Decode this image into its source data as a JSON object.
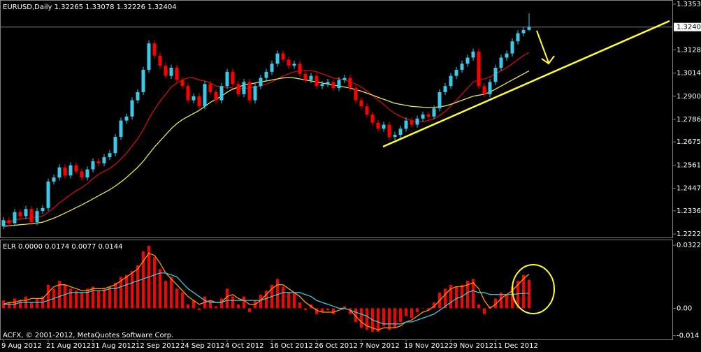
{
  "chart_data": [
    {
      "type": "candlestick",
      "title": "EURUSD,Daily  1.32265 1.33078 1.32226 1.32404",
      "categories": [
        "9 Aug 2012",
        null,
        null,
        null,
        null,
        null,
        null,
        null,
        "21 Aug 2012",
        null,
        null,
        null,
        null,
        null,
        null,
        null,
        "31 Aug 2012",
        null,
        null,
        null,
        null,
        null,
        null,
        null,
        "12 Sep 2012",
        null,
        null,
        null,
        null,
        null,
        null,
        null,
        "24 Sep 2012",
        null,
        null,
        null,
        null,
        null,
        null,
        null,
        "4 Oct 2012",
        null,
        null,
        null,
        null,
        null,
        null,
        null,
        "16 Oct 2012",
        null,
        null,
        null,
        null,
        null,
        null,
        null,
        "26 Oct 2012",
        null,
        null,
        null,
        null,
        null,
        null,
        null,
        "7 Nov 2012",
        null,
        null,
        null,
        null,
        null,
        null,
        null,
        "19 Nov 2012",
        null,
        null,
        null,
        null,
        null,
        null,
        null,
        "29 Nov 2012",
        null,
        null,
        null,
        null,
        null,
        null,
        null,
        "11 Dec 2012",
        null,
        null,
        null,
        null,
        null,
        null
      ],
      "open": [
        1.226,
        1.229,
        1.2275,
        1.233,
        1.231,
        1.2345,
        1.228,
        1.2335,
        1.235,
        1.248,
        1.25,
        1.255,
        1.251,
        1.256,
        1.253,
        1.25,
        1.254,
        1.258,
        1.257,
        1.26,
        1.262,
        1.27,
        1.278,
        1.28,
        1.288,
        1.292,
        1.303,
        1.316,
        1.31,
        1.305,
        1.3,
        1.304,
        1.298,
        1.295,
        1.288,
        1.29,
        1.285,
        1.296,
        1.292,
        1.288,
        1.295,
        1.302,
        1.296,
        1.291,
        1.297,
        1.288,
        1.295,
        1.299,
        1.302,
        1.306,
        1.311,
        1.308,
        1.305,
        1.306,
        1.301,
        1.298,
        1.3,
        1.295,
        1.296,
        1.297,
        1.294,
        1.298,
        1.299,
        1.294,
        1.288,
        1.285,
        1.281,
        1.277,
        1.274,
        1.276,
        1.27,
        1.271,
        1.274,
        1.278,
        1.276,
        1.279,
        1.281,
        1.28,
        1.284,
        1.292,
        1.295,
        1.3,
        1.303,
        1.306,
        1.309,
        1.312,
        1.295,
        1.291,
        1.297,
        1.304,
        1.309,
        1.311,
        1.317,
        1.321,
        1.32265
      ],
      "high": [
        1.2305,
        1.2305,
        1.2345,
        1.2345,
        1.236,
        1.236,
        1.235,
        1.2365,
        1.2495,
        1.2515,
        1.2565,
        1.2565,
        1.2575,
        1.2575,
        1.2545,
        1.2555,
        1.2595,
        1.2595,
        1.2615,
        1.2635,
        1.2715,
        1.2795,
        1.2815,
        1.2895,
        1.2935,
        1.3045,
        1.3175,
        1.3175,
        1.3115,
        1.3065,
        1.3055,
        1.3055,
        1.2995,
        1.2965,
        1.2915,
        1.2915,
        1.2975,
        1.2975,
        1.2935,
        1.2965,
        1.3035,
        1.3035,
        1.2975,
        1.2985,
        1.2985,
        1.2965,
        1.3005,
        1.3035,
        1.3075,
        1.3125,
        1.3125,
        1.3095,
        1.3075,
        1.3075,
        1.3025,
        1.3015,
        1.3015,
        1.2975,
        1.2985,
        1.2985,
        1.2995,
        1.3005,
        1.3005,
        1.2955,
        1.2895,
        1.2865,
        1.2825,
        1.2785,
        1.2775,
        1.2775,
        1.2725,
        1.2755,
        1.2795,
        1.2795,
        1.2805,
        1.2825,
        1.2825,
        1.2855,
        1.2935,
        1.2965,
        1.3015,
        1.3045,
        1.3075,
        1.3105,
        1.3135,
        1.3135,
        1.2965,
        1.2985,
        1.3055,
        1.3105,
        1.3125,
        1.3185,
        1.3225,
        1.3241,
        1.33078
      ],
      "low": [
        1.2245,
        1.226,
        1.226,
        1.2295,
        1.2295,
        1.2265,
        1.2265,
        1.232,
        1.2335,
        1.2465,
        1.2485,
        1.2495,
        1.2495,
        1.2515,
        1.2485,
        1.2485,
        1.2525,
        1.2555,
        1.2555,
        1.2585,
        1.2605,
        1.2685,
        1.2765,
        1.2785,
        1.2865,
        1.2905,
        1.3015,
        1.3085,
        1.3035,
        1.2985,
        1.2985,
        1.2965,
        1.2935,
        1.2865,
        1.2865,
        1.2835,
        1.2835,
        1.2905,
        1.2865,
        1.2865,
        1.2935,
        1.2945,
        1.2895,
        1.2895,
        1.2865,
        1.2865,
        1.2935,
        1.2975,
        1.3005,
        1.3045,
        1.3065,
        1.3035,
        1.3035,
        1.2995,
        1.2965,
        1.2965,
        1.2935,
        1.2935,
        1.2945,
        1.2925,
        1.2925,
        1.2965,
        1.2925,
        1.2865,
        1.2835,
        1.2795,
        1.2755,
        1.2725,
        1.2725,
        1.2685,
        1.2685,
        1.2695,
        1.2725,
        1.2745,
        1.2745,
        1.2775,
        1.2785,
        1.2785,
        1.2825,
        1.2905,
        1.2935,
        1.2985,
        1.3015,
        1.3045,
        1.3075,
        1.2935,
        1.2895,
        1.2895,
        1.2955,
        1.3025,
        1.3075,
        1.3095,
        1.3155,
        1.3195,
        1.32226
      ],
      "close": [
        1.229,
        1.2275,
        1.233,
        1.231,
        1.2345,
        1.228,
        1.2335,
        1.235,
        1.248,
        1.25,
        1.255,
        1.251,
        1.256,
        1.253,
        1.25,
        1.254,
        1.258,
        1.257,
        1.26,
        1.262,
        1.27,
        1.278,
        1.28,
        1.288,
        1.292,
        1.303,
        1.316,
        1.31,
        1.305,
        1.3,
        1.304,
        1.298,
        1.295,
        1.288,
        1.29,
        1.285,
        1.296,
        1.292,
        1.288,
        1.295,
        1.302,
        1.296,
        1.291,
        1.297,
        1.288,
        1.295,
        1.299,
        1.302,
        1.306,
        1.311,
        1.308,
        1.305,
        1.306,
        1.301,
        1.298,
        1.3,
        1.295,
        1.296,
        1.297,
        1.294,
        1.298,
        1.299,
        1.294,
        1.288,
        1.285,
        1.281,
        1.277,
        1.274,
        1.276,
        1.27,
        1.271,
        1.274,
        1.278,
        1.276,
        1.279,
        1.281,
        1.28,
        1.284,
        1.292,
        1.295,
        1.3,
        1.303,
        1.306,
        1.309,
        1.312,
        1.295,
        1.291,
        1.297,
        1.304,
        1.309,
        1.311,
        1.317,
        1.321,
        1.3226,
        1.32404
      ],
      "up_color": "#3cc8e6",
      "down_color": "#ff0000",
      "lines": [
        {
          "color": "#cc1010",
          "values": [
            1.228,
            1.2282,
            1.229,
            1.2295,
            1.23,
            1.23,
            1.2305,
            1.231,
            1.233,
            1.235,
            1.2375,
            1.2395,
            1.2415,
            1.2435,
            1.245,
            1.247,
            1.2495,
            1.2515,
            1.253,
            1.2545,
            1.2565,
            1.259,
            1.262,
            1.2655,
            1.269,
            1.2735,
            1.279,
            1.2835,
            1.2875,
            1.291,
            1.2945,
            1.2965,
            1.298,
            1.299,
            1.299,
            1.298,
            1.2975,
            1.2965,
            1.295,
            1.2945,
            1.2945,
            1.294,
            1.2935,
            1.294,
            1.294,
            1.2945,
            1.295,
            1.296,
            1.297,
            1.2985,
            1.3,
            1.301,
            1.302,
            1.3025,
            1.3025,
            1.3025,
            1.302,
            1.301,
            1.3,
            1.299,
            1.2985,
            1.298,
            1.297,
            1.296,
            1.2945,
            1.2925,
            1.2905,
            1.288,
            1.286,
            1.2835,
            1.2815,
            1.28,
            1.279,
            1.278,
            1.2775,
            1.2775,
            1.278,
            1.279,
            1.2805,
            1.2825,
            1.285,
            1.288,
            1.291,
            1.294,
            1.297,
            1.298,
            1.2985,
            1.2995,
            1.301,
            1.3025,
            1.304,
            1.306,
            1.308,
            1.31,
            1.3115
          ]
        },
        {
          "color": "#e6e65a",
          "values": [
            1.226,
            1.2262,
            1.2265,
            1.2268,
            1.227,
            1.2273,
            1.2276,
            1.228,
            1.229,
            1.23,
            1.2312,
            1.2325,
            1.2338,
            1.2352,
            1.2365,
            1.238,
            1.2395,
            1.241,
            1.2425,
            1.244,
            1.2458,
            1.2478,
            1.25,
            1.2525,
            1.255,
            1.258,
            1.2615,
            1.265,
            1.268,
            1.271,
            1.274,
            1.2765,
            1.2785,
            1.28,
            1.2815,
            1.283,
            1.285,
            1.287,
            1.2885,
            1.29,
            1.292,
            1.2935,
            1.2945,
            1.2955,
            1.296,
            1.2965,
            1.297,
            1.2975,
            1.298,
            1.2985,
            1.299,
            1.2992,
            1.299,
            1.2985,
            1.298,
            1.2975,
            1.297,
            1.2965,
            1.296,
            1.2955,
            1.295,
            1.2945,
            1.294,
            1.2932,
            1.2925,
            1.2915,
            1.2905,
            1.2895,
            1.2885,
            1.2875,
            1.2865,
            1.286,
            1.2855,
            1.285,
            1.2848,
            1.2846,
            1.2845,
            1.2845,
            1.2848,
            1.2852,
            1.286,
            1.287,
            1.288,
            1.289,
            1.29,
            1.2905,
            1.291,
            1.292,
            1.2935,
            1.295,
            1.2965,
            1.298,
            1.2995,
            1.301,
            1.3025
          ]
        }
      ],
      "ylim": [
        1.2205,
        1.337
      ],
      "yticks": [
        {
          "value": 1.3353,
          "label": "1.33530"
        },
        {
          "value": 1.3128,
          "label": "1.31280"
        },
        {
          "value": 1.3014,
          "label": "1.30140"
        },
        {
          "value": 1.29,
          "label": "1.29000"
        },
        {
          "value": 1.2786,
          "label": "1.27860"
        },
        {
          "value": 1.2675,
          "label": "1.26750"
        },
        {
          "value": 1.2561,
          "label": "1.25610"
        },
        {
          "value": 1.2447,
          "label": "1.24470"
        },
        {
          "value": 1.2336,
          "label": "1.23360"
        },
        {
          "value": 1.2222,
          "label": "1.22220"
        }
      ],
      "current_price": {
        "value": 1.32404,
        "label": "1.32404"
      }
    },
    {
      "type": "oscillator",
      "title": "ELR 0.0000 0.0174 0.0077 0.0144",
      "values": [
        0.004,
        0.003,
        0.005,
        0.004,
        0.006,
        0.003,
        0.005,
        0.006,
        0.012,
        0.01,
        0.014,
        0.012,
        0.01,
        0.009,
        0.008,
        0.01,
        0.011,
        0.009,
        0.01,
        0.011,
        0.013,
        0.016,
        0.017,
        0.019,
        0.022,
        0.029,
        0.032,
        0.026,
        0.02,
        0.014,
        0.016,
        0.01,
        0.008,
        0.002,
        0.004,
        -0.001,
        0.006,
        0.004,
        0.001,
        0.005,
        0.01,
        0.006,
        0.002,
        0.006,
        -0.002,
        0.004,
        0.007,
        0.009,
        0.012,
        0.015,
        0.011,
        0.008,
        0.008,
        0.003,
        -0.001,
        0.002,
        -0.003,
        -0.002,
        -0.001,
        -0.003,
        0.0,
        0.001,
        -0.003,
        -0.007,
        -0.01,
        -0.011,
        -0.012,
        -0.012,
        -0.009,
        -0.011,
        -0.01,
        -0.007,
        -0.004,
        -0.005,
        -0.002,
        0.0,
        -0.001,
        0.003,
        0.008,
        0.01,
        0.012,
        0.011,
        0.012,
        0.014,
        0.015,
        0.002,
        -0.003,
        0.001,
        0.005,
        0.008,
        0.007,
        0.011,
        0.014,
        0.017,
        0.0144
      ],
      "color": "#ff0000",
      "lines": [
        {
          "color": "#ff9900",
          "values": [
            0.002,
            0.003,
            0.003,
            0.004,
            0.004,
            0.005,
            0.005,
            0.005,
            0.008,
            0.011,
            0.012,
            0.012,
            0.011,
            0.01,
            0.009,
            0.009,
            0.01,
            0.01,
            0.01,
            0.011,
            0.012,
            0.014,
            0.016,
            0.018,
            0.02,
            0.024,
            0.028,
            0.027,
            0.023,
            0.018,
            0.015,
            0.012,
            0.009,
            0.006,
            0.004,
            0.002,
            0.003,
            0.004,
            0.003,
            0.003,
            0.006,
            0.007,
            0.005,
            0.004,
            0.002,
            0.002,
            0.004,
            0.007,
            0.01,
            0.012,
            0.012,
            0.01,
            0.008,
            0.006,
            0.003,
            0.001,
            -0.001,
            -0.002,
            -0.002,
            -0.002,
            -0.001,
            0.0,
            -0.001,
            -0.004,
            -0.007,
            -0.009,
            -0.01,
            -0.011,
            -0.01,
            -0.01,
            -0.01,
            -0.009,
            -0.007,
            -0.006,
            -0.004,
            -0.002,
            -0.001,
            0.001,
            0.004,
            0.007,
            0.01,
            0.011,
            0.011,
            0.012,
            0.013,
            0.01,
            0.004,
            0.0,
            0.002,
            0.005,
            0.007,
            0.009,
            0.012,
            0.015,
            0.0174
          ]
        },
        {
          "color": "#3cc8dc",
          "values": [
            0.002,
            0.002,
            0.002,
            0.003,
            0.003,
            0.003,
            0.003,
            0.003,
            0.004,
            0.005,
            0.006,
            0.007,
            0.008,
            0.008,
            0.008,
            0.008,
            0.009,
            0.009,
            0.009,
            0.01,
            0.01,
            0.011,
            0.012,
            0.013,
            0.014,
            0.015,
            0.016,
            0.017,
            0.018,
            0.018,
            0.017,
            0.016,
            0.013,
            0.01,
            0.008,
            0.006,
            0.004,
            0.003,
            0.003,
            0.003,
            0.004,
            0.004,
            0.004,
            0.004,
            0.004,
            0.004,
            0.004,
            0.005,
            0.006,
            0.007,
            0.008,
            0.008,
            0.008,
            0.008,
            0.007,
            0.006,
            0.004,
            0.003,
            0.002,
            0.001,
            0.0,
            0.0,
            -0.001,
            -0.002,
            -0.003,
            -0.004,
            -0.006,
            -0.007,
            -0.008,
            -0.008,
            -0.008,
            -0.008,
            -0.007,
            -0.007,
            -0.006,
            -0.005,
            -0.004,
            -0.003,
            -0.001,
            0.001,
            0.003,
            0.005,
            0.006,
            0.008,
            0.009,
            0.008,
            0.008,
            0.007,
            0.007,
            0.007,
            0.007,
            0.007,
            0.0074,
            0.0076,
            0.0077
          ]
        }
      ],
      "ylim": [
        -0.0159,
        0.0347
      ],
      "yticks": [
        0.0322,
        {
          "value": 0,
          "label": "0.00"
        },
        -0.014
      ],
      "copyright": "ACFX, © 2001-2012, MetaQuotes Software Corp."
    }
  ]
}
